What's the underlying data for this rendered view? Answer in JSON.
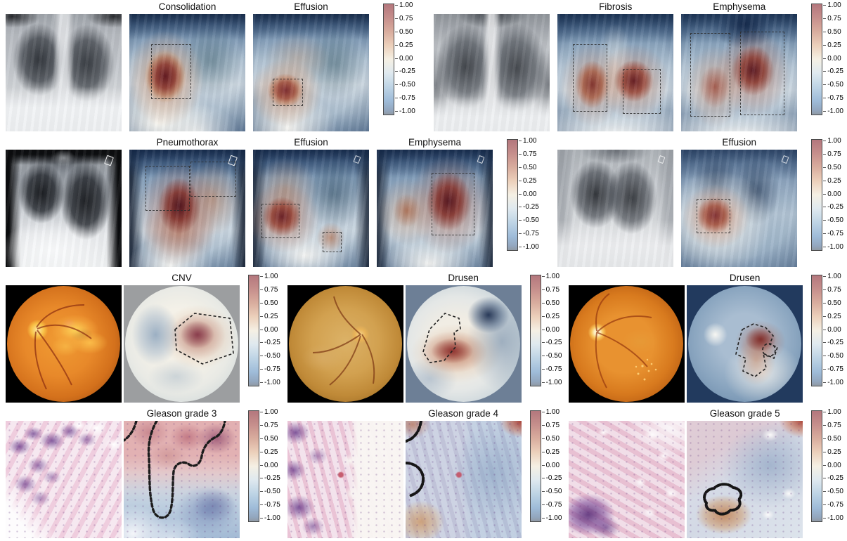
{
  "colorbar": {
    "ticks": [
      "1.00",
      "0.75",
      "0.50",
      "0.25",
      "0.00",
      "-0.25",
      "-0.50",
      "-0.75",
      "-1.00"
    ],
    "max_color": "#b4777d",
    "mid_color": "#f5f0e4",
    "min_color": "#909aa5"
  },
  "rows": [
    {
      "modality": "chest-xray",
      "groups": [
        {
          "panels": [
            {
              "type": "photo"
            },
            {
              "type": "heatmap",
              "title": "Consolidation"
            },
            {
              "type": "heatmap",
              "title": "Effusion"
            }
          ]
        },
        {
          "panels": [
            {
              "type": "photo"
            },
            {
              "type": "heatmap",
              "title": "Fibrosis"
            },
            {
              "type": "heatmap",
              "title": "Emphysema"
            }
          ]
        }
      ]
    },
    {
      "modality": "chest-xray",
      "groups": [
        {
          "panels": [
            {
              "type": "photo"
            },
            {
              "type": "heatmap",
              "title": "Pneumothorax"
            },
            {
              "type": "heatmap",
              "title": "Effusion"
            },
            {
              "type": "heatmap",
              "title": "Emphysema"
            }
          ]
        },
        {
          "panels": [
            {
              "type": "photo"
            },
            {
              "type": "heatmap",
              "title": "Effusion"
            }
          ]
        }
      ]
    },
    {
      "modality": "retinal-fundus",
      "groups": [
        {
          "panels": [
            {
              "type": "photo"
            },
            {
              "type": "heatmap",
              "title": "CNV"
            }
          ]
        },
        {
          "panels": [
            {
              "type": "photo"
            },
            {
              "type": "heatmap",
              "title": "Drusen"
            }
          ]
        },
        {
          "panels": [
            {
              "type": "photo"
            },
            {
              "type": "heatmap",
              "title": "Drusen"
            }
          ]
        }
      ]
    },
    {
      "modality": "histopathology",
      "groups": [
        {
          "panels": [
            {
              "type": "photo"
            },
            {
              "type": "heatmap",
              "title": "Gleason grade 3"
            }
          ]
        },
        {
          "panels": [
            {
              "type": "photo"
            },
            {
              "type": "heatmap",
              "title": "Gleason grade 4"
            }
          ]
        },
        {
          "panels": [
            {
              "type": "photo"
            },
            {
              "type": "heatmap",
              "title": "Gleason grade 5"
            }
          ]
        }
      ]
    }
  ]
}
